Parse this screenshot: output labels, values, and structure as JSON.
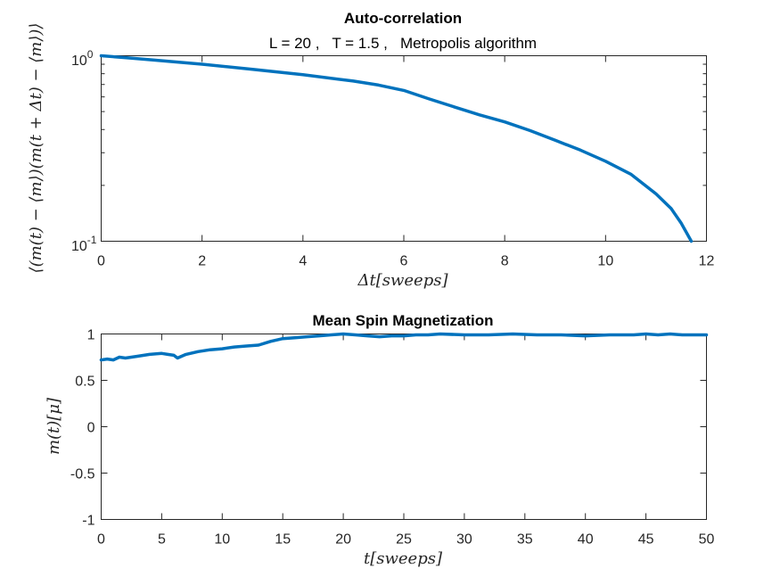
{
  "colors": {
    "series": "#0072BD",
    "axis": "#262626"
  },
  "chart_data": [
    {
      "type": "line",
      "yscale": "log",
      "title": "Auto-correlation",
      "subtitle": "L = 20 ,   T = 1.5 ,   Metropolis algorithm",
      "xlabel": "Δt[sweeps]",
      "ylabel": "⟨(m(t) − ⟨m⟩)(m(t + Δt) − ⟨m⟩)⟩",
      "xlim": [
        0,
        12
      ],
      "ylim": [
        0.1,
        1
      ],
      "xticks": [
        0,
        2,
        4,
        6,
        8,
        10,
        12
      ],
      "xtick_labels": [
        "0",
        "2",
        "4",
        "6",
        "8",
        "10",
        "12"
      ],
      "ytick_labels": {
        "base": "10",
        "exponents": [
          "0",
          "-1"
        ]
      },
      "series": [
        {
          "name": "auto-correlation",
          "x": [
            0,
            0.5,
            1,
            2,
            3,
            4,
            5,
            5.5,
            6,
            6.5,
            7,
            7.5,
            8,
            8.5,
            9,
            9.5,
            10,
            10.5,
            11,
            11.3,
            11.5,
            11.7
          ],
          "y": [
            1.0,
            0.975,
            0.95,
            0.9,
            0.845,
            0.79,
            0.73,
            0.695,
            0.65,
            0.585,
            0.53,
            0.48,
            0.44,
            0.395,
            0.35,
            0.31,
            0.27,
            0.23,
            0.18,
            0.15,
            0.125,
            0.1
          ]
        }
      ]
    },
    {
      "type": "line",
      "title": "Mean Spin Magnetization",
      "xlabel": "t[sweeps]",
      "ylabel": "m(t)[μ]",
      "xlim": [
        0,
        50
      ],
      "ylim": [
        -1,
        1
      ],
      "xticks": [
        0,
        5,
        10,
        15,
        20,
        25,
        30,
        35,
        40,
        45,
        50
      ],
      "xtick_labels": [
        "0",
        "5",
        "10",
        "15",
        "20",
        "25",
        "30",
        "35",
        "40",
        "45",
        "50"
      ],
      "yticks": [
        -1,
        -0.5,
        0,
        0.5,
        1
      ],
      "ytick_labels": [
        "-1",
        "-0.5",
        "0",
        "0.5",
        "1"
      ],
      "series": [
        {
          "name": "magnetization",
          "x": [
            0,
            0.5,
            1,
            1.5,
            2,
            3,
            4,
            5,
            5.5,
            6,
            6.3,
            7,
            8,
            9,
            10,
            11,
            12,
            13,
            14,
            15,
            16,
            17,
            18,
            19,
            20,
            21,
            22,
            23,
            24,
            25,
            26,
            27,
            28,
            30,
            32,
            34,
            36,
            38,
            40,
            42,
            44,
            45,
            46,
            47,
            48,
            49,
            50
          ],
          "y": [
            0.72,
            0.73,
            0.72,
            0.75,
            0.74,
            0.76,
            0.78,
            0.79,
            0.78,
            0.77,
            0.74,
            0.78,
            0.81,
            0.83,
            0.84,
            0.86,
            0.87,
            0.88,
            0.92,
            0.95,
            0.96,
            0.97,
            0.98,
            0.99,
            1.0,
            0.99,
            0.98,
            0.97,
            0.98,
            0.98,
            0.99,
            0.99,
            1.0,
            0.99,
            0.99,
            1.0,
            0.99,
            0.99,
            0.98,
            0.99,
            0.99,
            1.0,
            0.99,
            1.0,
            0.99,
            0.99,
            0.99
          ]
        }
      ]
    }
  ]
}
